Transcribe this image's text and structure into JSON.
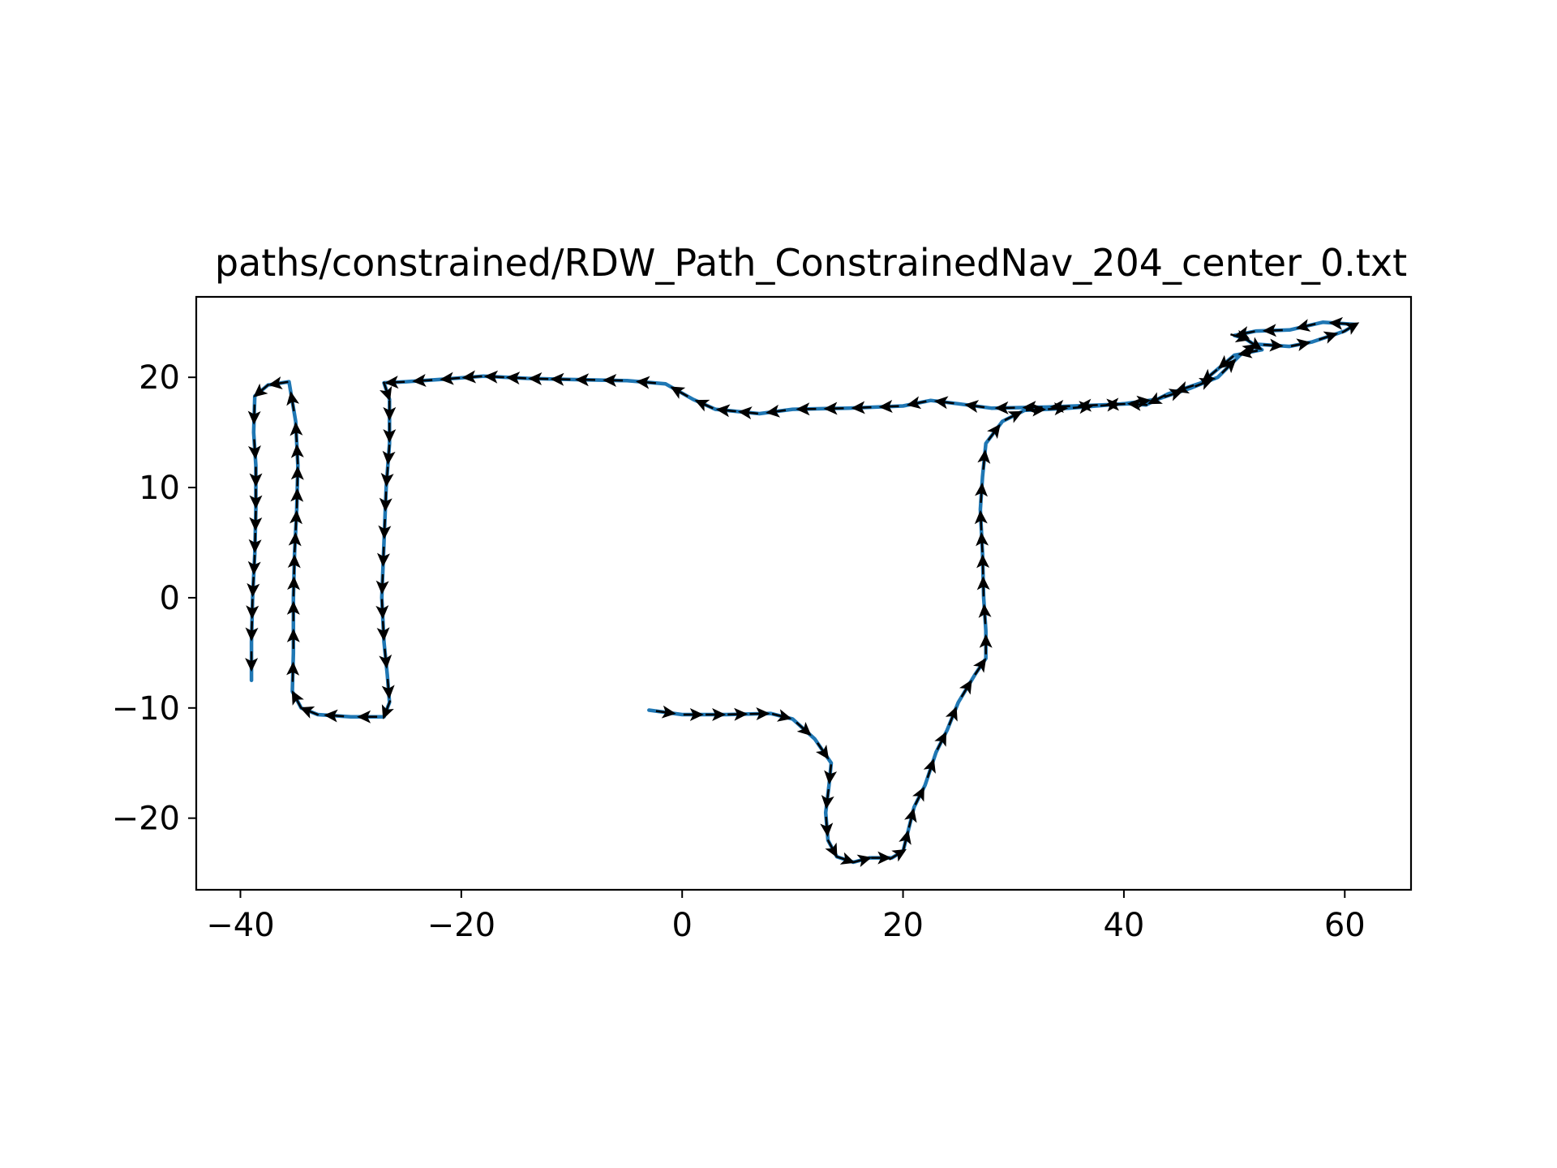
{
  "chart_data": {
    "type": "line",
    "title": "paths/constrained/RDW_Path_ConstrainedNav_204_center_0.txt",
    "xlabel": "",
    "ylabel": "",
    "xlim": [
      -44,
      66
    ],
    "ylim": [
      -26.5,
      27.3
    ],
    "xticks": [
      -40,
      -20,
      0,
      20,
      40,
      60
    ],
    "yticks": [
      20,
      10,
      0,
      -10,
      -20
    ],
    "xtick_labels": [
      "−40",
      "−20",
      "0",
      "20",
      "40",
      "60"
    ],
    "ytick_labels": [
      "20",
      "10",
      "0",
      "−10",
      "−20"
    ],
    "grid": false,
    "legend": "none",
    "colors": {
      "path": "#1f77b4",
      "arrows": "#000000",
      "frame": "#000000"
    },
    "series": [
      {
        "points": [
          [
            -3,
            -10.2
          ],
          [
            0,
            -10.6
          ],
          [
            4,
            -10.6
          ],
          [
            8,
            -10.5
          ],
          [
            10,
            -11
          ],
          [
            12,
            -12.8
          ],
          [
            13.5,
            -15
          ],
          [
            13.3,
            -17
          ],
          [
            13,
            -19.5
          ],
          [
            13.2,
            -22
          ],
          [
            14,
            -23.5
          ],
          [
            15.5,
            -24
          ],
          [
            17,
            -23.6
          ],
          [
            19,
            -23.6
          ],
          [
            20,
            -23
          ],
          [
            20.5,
            -21
          ],
          [
            21,
            -19
          ],
          [
            22,
            -17
          ],
          [
            23,
            -14
          ],
          [
            24,
            -12
          ],
          [
            25,
            -9.5
          ],
          [
            26.5,
            -7
          ],
          [
            27.5,
            -5.5
          ],
          [
            27.5,
            -3
          ],
          [
            27.3,
            0
          ],
          [
            27.2,
            4
          ],
          [
            27,
            8
          ],
          [
            27.2,
            11
          ],
          [
            27.5,
            14
          ],
          [
            29,
            16
          ],
          [
            31,
            17
          ],
          [
            35,
            17.2
          ],
          [
            40,
            17.6
          ],
          [
            43,
            18
          ],
          [
            46,
            19
          ],
          [
            48.5,
            20
          ],
          [
            50.5,
            22
          ],
          [
            52,
            23
          ],
          [
            55,
            22.8
          ],
          [
            57,
            23.2
          ],
          [
            60,
            24.2
          ],
          [
            61,
            24.8
          ],
          [
            58,
            25
          ],
          [
            55,
            24.3
          ],
          [
            52,
            24.2
          ],
          [
            50,
            23.8
          ],
          [
            51,
            23.5
          ],
          [
            52.5,
            22.5
          ],
          [
            50,
            22
          ],
          [
            47,
            19.5
          ],
          [
            44,
            18.5
          ],
          [
            42,
            17.5
          ],
          [
            40.5,
            17.6
          ],
          [
            38,
            17.5
          ],
          [
            33,
            17.3
          ],
          [
            28,
            17.2
          ],
          [
            25,
            17.6
          ],
          [
            22.5,
            17.9
          ],
          [
            20,
            17.4
          ],
          [
            15,
            17.2
          ],
          [
            10,
            17.1
          ],
          [
            7,
            16.7
          ],
          [
            3,
            17.1
          ],
          [
            1,
            18
          ],
          [
            -1.5,
            19.4
          ],
          [
            -5,
            19.7
          ],
          [
            -10,
            19.8
          ],
          [
            -14,
            19.9
          ],
          [
            -18,
            20.1
          ],
          [
            -22,
            19.8
          ],
          [
            -25,
            19.6
          ],
          [
            -27,
            19.5
          ],
          [
            -26.5,
            18
          ],
          [
            -26.5,
            14
          ],
          [
            -26.8,
            10
          ],
          [
            -27,
            5
          ],
          [
            -27.2,
            0
          ],
          [
            -27,
            -4
          ],
          [
            -26.7,
            -7
          ],
          [
            -26.5,
            -9.5
          ],
          [
            -27,
            -10.8
          ],
          [
            -30,
            -10.8
          ],
          [
            -33,
            -10.6
          ],
          [
            -34.5,
            -10
          ],
          [
            -35.3,
            -8.5
          ],
          [
            -35.2,
            -5
          ],
          [
            -35.2,
            0
          ],
          [
            -35.1,
            4
          ],
          [
            -34.9,
            8
          ],
          [
            -34.8,
            12
          ],
          [
            -35,
            16
          ],
          [
            -35.6,
            19.6
          ],
          [
            -37.5,
            19.3
          ],
          [
            -38.7,
            18.3
          ],
          [
            -38.8,
            15
          ],
          [
            -38.6,
            12
          ],
          [
            -38.6,
            8
          ],
          [
            -38.7,
            4
          ],
          [
            -38.9,
            0
          ],
          [
            -39,
            -4
          ],
          [
            -39,
            -7.5
          ]
        ]
      }
    ]
  }
}
